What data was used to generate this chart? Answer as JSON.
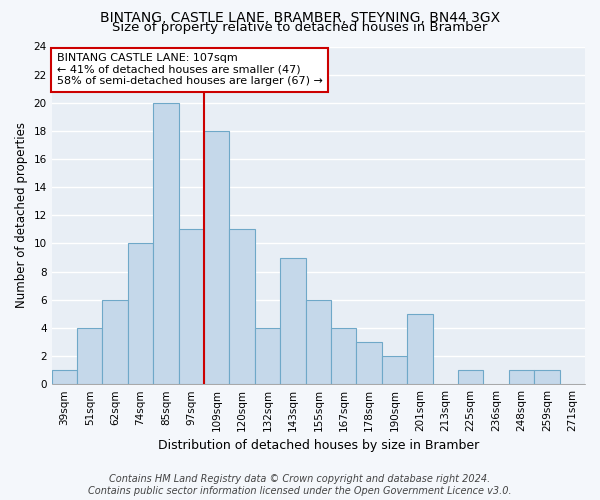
{
  "title": "BINTANG, CASTLE LANE, BRAMBER, STEYNING, BN44 3GX",
  "subtitle": "Size of property relative to detached houses in Bramber",
  "xlabel": "Distribution of detached houses by size in Bramber",
  "ylabel": "Number of detached properties",
  "bar_labels": [
    "39sqm",
    "51sqm",
    "62sqm",
    "74sqm",
    "85sqm",
    "97sqm",
    "109sqm",
    "120sqm",
    "132sqm",
    "143sqm",
    "155sqm",
    "167sqm",
    "178sqm",
    "190sqm",
    "201sqm",
    "213sqm",
    "225sqm",
    "236sqm",
    "248sqm",
    "259sqm",
    "271sqm"
  ],
  "bar_values": [
    1,
    4,
    6,
    10,
    20,
    11,
    18,
    11,
    4,
    9,
    6,
    4,
    3,
    2,
    5,
    0,
    1,
    0,
    1,
    1,
    0
  ],
  "bar_color": "#c5d8ea",
  "bar_edgecolor": "#6fa8c8",
  "vline_color": "#cc0000",
  "ylim": [
    0,
    24
  ],
  "yticks": [
    0,
    2,
    4,
    6,
    8,
    10,
    12,
    14,
    16,
    18,
    20,
    22,
    24
  ],
  "annotation_title": "BINTANG CASTLE LANE: 107sqm",
  "annotation_line1": "← 41% of detached houses are smaller (47)",
  "annotation_line2": "58% of semi-detached houses are larger (67) →",
  "annotation_box_color": "#ffffff",
  "annotation_box_edgecolor": "#cc0000",
  "footer_line1": "Contains HM Land Registry data © Crown copyright and database right 2024.",
  "footer_line2": "Contains public sector information licensed under the Open Government Licence v3.0.",
  "bg_color": "#f4f7fb",
  "plot_bg_color": "#e8eef5",
  "grid_color": "#ffffff",
  "title_fontsize": 10,
  "subtitle_fontsize": 9.5,
  "xlabel_fontsize": 9,
  "ylabel_fontsize": 8.5,
  "tick_fontsize": 7.5,
  "footer_fontsize": 7,
  "annotation_fontsize": 8
}
